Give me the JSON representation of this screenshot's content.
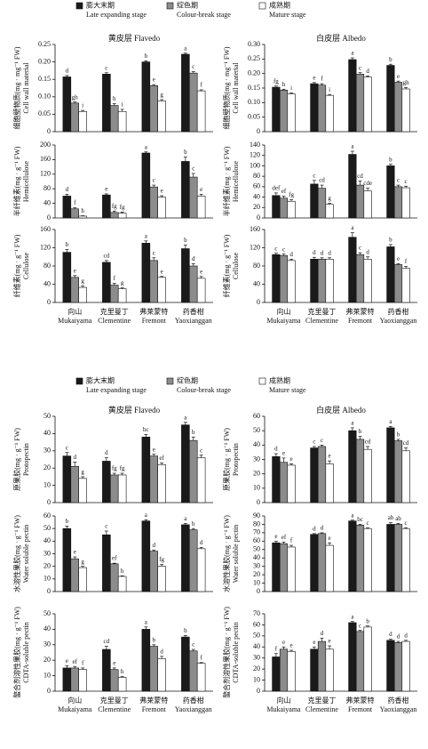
{
  "chart_data": [
    {
      "type": "bar",
      "title": "黄皮层 Flavedo",
      "ylabel": "细胞壁物质(mg · mg⁻¹ FW)",
      "ylabel_en": "Cell wall material",
      "categories": [
        null,
        null,
        null,
        null
      ],
      "ylim": [
        0,
        0.25
      ],
      "yticks": [
        0,
        0.05,
        {
          "value": 0.1,
          "label": "0.10"
        },
        0.15,
        {
          "value": 0.2,
          "label": "0.20"
        },
        0.25
      ],
      "series": [
        {
          "name": "膨大末期",
          "name_en": "Late expanding stage",
          "color": "#1a1a1a",
          "values": [
            0.157,
            0.165,
            0.2,
            0.222
          ],
          "errors": [
            0.004,
            0.004,
            0.003,
            0.003
          ],
          "letters": [
            "d",
            "c",
            "b",
            "a"
          ]
        },
        {
          "name": "绽色期",
          "name_en": "Colour-break stage",
          "color": "#8c8c8c",
          "values": [
            0.082,
            0.075,
            0.132,
            0.168
          ],
          "errors": [
            0.003,
            0.005,
            0.003,
            0.004
          ],
          "letters": [
            "gh",
            "h",
            "e",
            "c"
          ]
        },
        {
          "name": "成熟期",
          "name_en": "Mature stage",
          "color": "#ffffff",
          "values": [
            0.058,
            0.058,
            0.088,
            0.117
          ],
          "errors": [
            0.003,
            0.006,
            0.004,
            0.003
          ],
          "letters": [
            "i",
            "i",
            "g",
            "f"
          ]
        }
      ]
    },
    {
      "type": "bar",
      "title": "白皮层 Albedo",
      "ylabel": "细胞壁物质(mg · mg⁻¹ FW)",
      "ylabel_en": "Cell wall material",
      "categories": [
        null,
        null,
        null,
        null
      ],
      "ylim": [
        0,
        0.3
      ],
      "yticks": [
        0,
        0.05,
        {
          "value": 0.1,
          "label": "0.10"
        },
        0.15,
        {
          "value": 0.2,
          "label": "0.20"
        },
        0.25,
        {
          "value": 0.3,
          "label": "0.30"
        }
      ],
      "series": [
        {
          "color": "#1a1a1a",
          "values": [
            0.153,
            0.165,
            0.248,
            0.228
          ],
          "errors": [
            0.004,
            0.004,
            0.006,
            0.004
          ],
          "letters": [
            "fg",
            "e",
            "a",
            "b"
          ]
        },
        {
          "color": "#8c8c8c",
          "values": [
            0.143,
            0.16,
            0.198,
            0.17
          ],
          "errors": [
            0.003,
            0.005,
            0.005,
            0.004
          ],
          "letters": [
            "h",
            "f",
            "c",
            "e"
          ]
        },
        {
          "color": "#ffffff",
          "values": [
            0.13,
            0.125,
            0.188,
            0.147
          ],
          "errors": [
            0.003,
            0.003,
            0.004,
            0.005
          ],
          "letters": [
            "i",
            "i",
            "d",
            "gh"
          ]
        }
      ]
    },
    {
      "type": "bar",
      "ylabel": "半纤维素(mg · g⁻¹ FW)",
      "ylabel_en": "Hemicellulose",
      "categories": [
        null,
        null,
        null,
        null
      ],
      "ylim": [
        0,
        200
      ],
      "yticks": [
        0,
        40,
        80,
        120,
        160,
        200
      ],
      "series": [
        {
          "color": "#1a1a1a",
          "values": [
            60,
            63,
            178,
            155
          ],
          "errors": [
            5,
            3,
            3,
            12
          ],
          "letters": [
            "d",
            "e",
            "a",
            "b"
          ]
        },
        {
          "color": "#8c8c8c",
          "values": [
            25,
            15,
            85,
            112
          ],
          "errors": [
            3,
            4,
            5,
            10
          ],
          "letters": [
            "f",
            "fg",
            "c",
            "c"
          ]
        },
        {
          "color": "#ffffff",
          "values": [
            5,
            13,
            57,
            60
          ],
          "errors": [
            1,
            3,
            4,
            5
          ],
          "letters": [
            "h",
            "fg",
            "e",
            "e"
          ]
        }
      ]
    },
    {
      "type": "bar",
      "ylabel": "半纤维素(mg · g⁻¹ FW)",
      "ylabel_en": "Hemicellulose",
      "categories": [
        null,
        null,
        null,
        null
      ],
      "ylim": [
        0,
        140
      ],
      "yticks": [
        0,
        20,
        40,
        60,
        80,
        100,
        120,
        140
      ],
      "series": [
        {
          "color": "#1a1a1a",
          "values": [
            43,
            65,
            122,
            100
          ],
          "errors": [
            5,
            7,
            6,
            3
          ],
          "letters": [
            "def",
            "c",
            "a",
            "b"
          ]
        },
        {
          "color": "#8c8c8c",
          "values": [
            38,
            57,
            63,
            60
          ],
          "errors": [
            4,
            6,
            8,
            3
          ],
          "letters": [
            "ef",
            "cd",
            "cd",
            "c"
          ]
        },
        {
          "color": "#ffffff",
          "values": [
            32,
            26,
            52,
            58
          ],
          "errors": [
            3,
            2,
            5,
            3
          ],
          "letters": [
            "fg",
            "g",
            "cde",
            "c"
          ]
        }
      ]
    },
    {
      "type": "bar",
      "ylabel": "纤维素(mg · g⁻¹ FW)",
      "ylabel_en": "Cellulose",
      "categories": [
        "向山",
        "克里曼丁",
        "弗莱蒙特",
        "药香柑"
      ],
      "categories_en": [
        "Mukaiyama",
        "Clementine",
        "Fremont",
        "Yaoxianggan"
      ],
      "ylim": [
        0,
        160
      ],
      "yticks": [
        0,
        40,
        80,
        120,
        160
      ],
      "series": [
        {
          "color": "#1a1a1a",
          "values": [
            110,
            88,
            130,
            118
          ],
          "errors": [
            6,
            4,
            5,
            8
          ],
          "letters": [
            "b",
            "cd",
            "a",
            "b"
          ]
        },
        {
          "color": "#8c8c8c",
          "values": [
            55,
            38,
            92,
            80
          ],
          "errors": [
            4,
            4,
            6,
            5
          ],
          "letters": [
            "e",
            "f",
            "c",
            "d"
          ]
        },
        {
          "color": "#ffffff",
          "values": [
            33,
            30,
            55,
            53
          ],
          "errors": [
            3,
            2,
            2,
            4
          ],
          "letters": [
            "g",
            "g",
            "e",
            "e"
          ]
        }
      ]
    },
    {
      "type": "bar",
      "ylabel": "纤维素(mg · g⁻¹ FW)",
      "ylabel_en": "Cellulose",
      "categories": [
        "向山",
        "克里曼丁",
        "弗莱蒙特",
        "药香柑"
      ],
      "categories_en": [
        "Mukaiyama",
        "Clementine",
        "Fremont",
        "Yaoxianggan"
      ],
      "ylim": [
        0,
        160
      ],
      "yticks": [
        0,
        40,
        80,
        120,
        160
      ],
      "series": [
        {
          "color": "#1a1a1a",
          "values": [
            105,
            95,
            143,
            122
          ],
          "errors": [
            3,
            4,
            10,
            5
          ],
          "letters": [
            "c",
            "d",
            "a",
            "b"
          ]
        },
        {
          "color": "#8c8c8c",
          "values": [
            103,
            95,
            105,
            83
          ],
          "errors": [
            3,
            3,
            4,
            2
          ],
          "letters": [
            "c",
            "d",
            "c",
            "e"
          ]
        },
        {
          "color": "#ffffff",
          "values": [
            92,
            95,
            95,
            75
          ],
          "errors": [
            3,
            3,
            5,
            4
          ],
          "letters": [
            "d",
            "d",
            "d",
            "f"
          ]
        }
      ]
    },
    {
      "type": "bar",
      "title": "黄皮层 Flavedo",
      "ylabel": "原果胶(mg · g⁻¹ FW)",
      "ylabel_en": "Protopectin",
      "categories": [
        null,
        null,
        null,
        null
      ],
      "ylim": [
        0,
        50
      ],
      "yticks": [
        0,
        10,
        20,
        30,
        40,
        50
      ],
      "series": [
        {
          "name": "膨大末期",
          "name_en": "Late expanding stage",
          "color": "#1a1a1a",
          "values": [
            27,
            24,
            38,
            45
          ],
          "errors": [
            2,
            2,
            1.5,
            1.5
          ],
          "letters": [
            "c",
            "d",
            "bc",
            "a"
          ]
        },
        {
          "name": "绽色期",
          "name_en": "Colour-break stage",
          "color": "#8c8c8c",
          "values": [
            21,
            16,
            27,
            36
          ],
          "errors": [
            2.5,
            1,
            1,
            2
          ],
          "letters": [
            "d",
            "fg",
            "e",
            "b"
          ]
        },
        {
          "name": "成熟期",
          "name_en": "Mature stage",
          "color": "#ffffff",
          "values": [
            14,
            16,
            22,
            26
          ],
          "errors": [
            1,
            1,
            1,
            1.5
          ],
          "letters": [
            "g",
            "fg",
            "ef",
            "c"
          ]
        }
      ]
    },
    {
      "type": "bar",
      "title": "白皮层 Albedo",
      "ylabel": "原果胶(mg · g⁻¹ FW)",
      "ylabel_en": "Protopectin",
      "categories": [
        null,
        null,
        null,
        null
      ],
      "ylim": [
        0,
        60
      ],
      "yticks": [
        0,
        10,
        20,
        30,
        40,
        50,
        60
      ],
      "series": [
        {
          "color": "#1a1a1a",
          "values": [
            32,
            38,
            50,
            52
          ],
          "errors": [
            2,
            1,
            2,
            1
          ],
          "letters": [
            "d",
            "c",
            "a",
            "a"
          ]
        },
        {
          "color": "#8c8c8c",
          "values": [
            28,
            39,
            44,
            43
          ],
          "errors": [
            3,
            1,
            2,
            1
          ],
          "letters": [
            "e",
            "c",
            "b",
            "b"
          ]
        },
        {
          "color": "#ffffff",
          "values": [
            26,
            27,
            37,
            36
          ],
          "errors": [
            1,
            2,
            2,
            2
          ],
          "letters": [
            "e",
            "e",
            "cd",
            "cd"
          ]
        }
      ]
    },
    {
      "type": "bar",
      "ylabel": "水溶性果胶(mg · g⁻¹ FW)",
      "ylabel_en": "Water soluble pectin",
      "categories": [
        null,
        null,
        null,
        null
      ],
      "ylim": [
        0,
        60
      ],
      "yticks": [
        0,
        10,
        20,
        30,
        40,
        50,
        60
      ],
      "series": [
        {
          "color": "#1a1a1a",
          "values": [
            50,
            45,
            56,
            53
          ],
          "errors": [
            2,
            3,
            1,
            1
          ],
          "letters": [
            "b",
            "c",
            "a",
            "a"
          ]
        },
        {
          "color": "#8c8c8c",
          "values": [
            26,
            22,
            32,
            49
          ],
          "errors": [
            1.5,
            0.5,
            1,
            1
          ],
          "letters": [
            "e",
            "ef",
            "d",
            "b"
          ]
        },
        {
          "color": "#ffffff",
          "values": [
            19,
            12,
            20,
            34
          ],
          "errors": [
            1,
            0.5,
            1.5,
            1
          ],
          "letters": [
            "g",
            "h",
            "fg",
            "d"
          ]
        }
      ]
    },
    {
      "type": "bar",
      "ylabel": "水溶性果胶(mg · g⁻¹ FW)",
      "ylabel_en": "Water soluble pectin",
      "categories": [
        null,
        null,
        null,
        null
      ],
      "ylim": [
        0,
        90
      ],
      "yticks": [
        0,
        10,
        20,
        30,
        40,
        50,
        60,
        70,
        80,
        90
      ],
      "series": [
        {
          "color": "#1a1a1a",
          "values": [
            58,
            68,
            84,
            80
          ],
          "errors": [
            2,
            1,
            1,
            2
          ],
          "letters": [
            "e",
            "d",
            "a",
            "ab"
          ]
        },
        {
          "color": "#8c8c8c",
          "values": [
            57,
            69,
            79,
            80
          ],
          "errors": [
            2,
            1,
            1,
            1
          ],
          "letters": [
            "ef",
            "d",
            "bc",
            "ab"
          ]
        },
        {
          "color": "#ffffff",
          "values": [
            53,
            55,
            75,
            75
          ],
          "errors": [
            2,
            3,
            1,
            1
          ],
          "letters": [
            "f",
            "e",
            "c",
            "c"
          ]
        }
      ]
    },
    {
      "type": "bar",
      "ylabel": "螯合剂溶性果胶(mg · g⁻¹ FW)",
      "ylabel_en": "CDTA-soluble pectin",
      "categories": [
        "向山",
        "克里曼丁",
        "弗莱蒙特",
        "药香柑"
      ],
      "categories_en": [
        "Mukaiyama",
        "Clementine",
        "Fremont",
        "Yaoxianggan"
      ],
      "ylim": [
        0,
        50
      ],
      "yticks": [
        0,
        10,
        20,
        30,
        40,
        50
      ],
      "series": [
        {
          "color": "#1a1a1a",
          "values": [
            15,
            27,
            40,
            35
          ],
          "errors": [
            1.5,
            2,
            1.5,
            1
          ],
          "letters": [
            "e",
            "cd",
            "a",
            "b"
          ]
        },
        {
          "color": "#8c8c8c",
          "values": [
            15,
            14,
            29,
            26
          ],
          "errors": [
            1,
            1,
            1,
            1
          ],
          "letters": [
            "ef",
            "e",
            "b",
            "c"
          ]
        },
        {
          "color": "#ffffff",
          "values": [
            14,
            9,
            21,
            18
          ],
          "errors": [
            1,
            0.5,
            1.5,
            0.5
          ],
          "letters": [
            "f",
            "h",
            "d",
            "f"
          ]
        }
      ]
    },
    {
      "type": "bar",
      "ylabel": "螯合剂溶性果胶(mg · g⁻¹ FW)",
      "ylabel_en": "CDTA-soluble pectin",
      "categories": [
        "向山",
        "克里曼丁",
        "弗莱蒙特",
        "药香柑"
      ],
      "categories_en": [
        "Mukaiyama",
        "Clementine",
        "Fremont",
        "Yaoxianggan"
      ],
      "ylim": [
        0,
        70
      ],
      "yticks": [
        0,
        10,
        20,
        30,
        40,
        50,
        60,
        70
      ],
      "series": [
        {
          "color": "#1a1a1a",
          "values": [
            31,
            38,
            62,
            46
          ],
          "errors": [
            3,
            2,
            1,
            1
          ],
          "letters": [
            "f",
            "e",
            "a",
            "d"
          ]
        },
        {
          "color": "#8c8c8c",
          "values": [
            38,
            45,
            54,
            44
          ],
          "errors": [
            2,
            3,
            1,
            1
          ],
          "letters": [
            "e",
            "d",
            "c",
            "d"
          ]
        },
        {
          "color": "#ffffff",
          "values": [
            36,
            38,
            58,
            45
          ],
          "errors": [
            1,
            3,
            1,
            1
          ],
          "letters": [
            "e",
            "e",
            "b",
            "d"
          ]
        }
      ]
    }
  ]
}
